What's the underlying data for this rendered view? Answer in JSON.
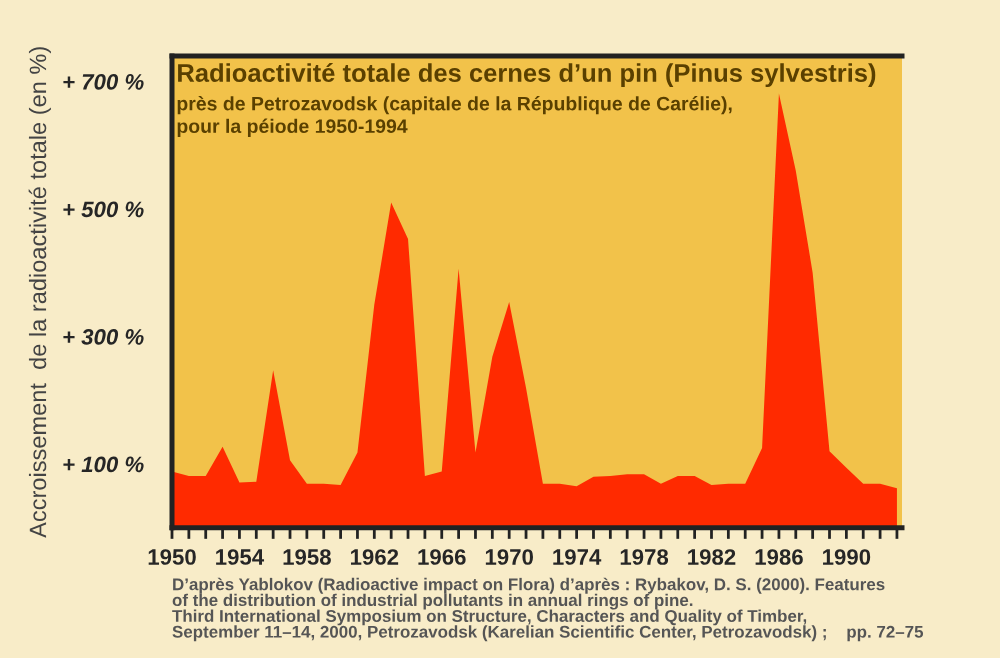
{
  "chart_data": {
    "type": "area",
    "title": "Radioactivité totale des cernes d’un pin (Pinus sylvestris)",
    "subtitle": "près de Petrozavodsk (capitale de la République de Carélie),\npour la péiode 1950-1994",
    "ylabel": "Accroissement  de la radioactivité totale (en %)",
    "annotations": [
      "D’après Yablokov (Radioactive impact on Flora) d’après : Rybakov, D. S. (2000). Features\nof the distribution of industrial pollutants in annual rings of pine.\nThird International Symposium on Structure, Characters and Quality of Timber,\nSeptember 11–14, 2000, Petrozavodsk (Karelian Scientific Center, Petrozavodsk) ;    pp. 72–75"
    ],
    "x": [
      1950,
      1951,
      1952,
      1953,
      1954,
      1955,
      1956,
      1957,
      1958,
      1959,
      1960,
      1961,
      1962,
      1963,
      1964,
      1965,
      1966,
      1967,
      1968,
      1969,
      1970,
      1971,
      1972,
      1973,
      1974,
      1975,
      1976,
      1977,
      1978,
      1979,
      1980,
      1981,
      1982,
      1983,
      1984,
      1985,
      1986,
      1987,
      1988,
      1989,
      1990,
      1991,
      1992,
      1993
    ],
    "series": [
      {
        "color": "#ff2a00",
        "values": [
          88,
          81,
          81,
          127,
          71,
          72,
          247,
          106,
          69,
          69,
          67,
          118,
          350,
          510,
          453,
          81,
          88,
          406,
          118,
          268,
          354,
          219,
          69,
          69,
          65,
          80,
          81,
          84,
          84,
          69,
          81,
          81,
          67,
          69,
          69,
          125,
          681,
          560,
          400,
          120,
          94,
          69,
          69,
          62
        ]
      }
    ],
    "xlim": [
      1950,
      1993.3
    ],
    "xticks": [
      1950,
      {
        "value": 1951,
        "label": null
      },
      {
        "value": 1952,
        "label": null
      },
      {
        "value": 1953,
        "label": null
      },
      1954,
      {
        "value": 1955,
        "label": null
      },
      {
        "value": 1956,
        "label": null
      },
      {
        "value": 1957,
        "label": null
      },
      1958,
      {
        "value": 1959,
        "label": null
      },
      {
        "value": 1960,
        "label": null
      },
      {
        "value": 1961,
        "label": null
      },
      1962,
      {
        "value": 1963,
        "label": null
      },
      {
        "value": 1964,
        "label": null
      },
      {
        "value": 1965,
        "label": null
      },
      1966,
      {
        "value": 1967,
        "label": null
      },
      {
        "value": 1968,
        "label": null
      },
      {
        "value": 1969,
        "label": null
      },
      1970,
      {
        "value": 1971,
        "label": null
      },
      {
        "value": 1972,
        "label": null
      },
      {
        "value": 1973,
        "label": null
      },
      1974,
      {
        "value": 1975,
        "label": null
      },
      {
        "value": 1976,
        "label": null
      },
      {
        "value": 1977,
        "label": null
      },
      1978,
      {
        "value": 1979,
        "label": null
      },
      {
        "value": 1980,
        "label": null
      },
      {
        "value": 1981,
        "label": null
      },
      1982,
      {
        "value": 1983,
        "label": null
      },
      {
        "value": 1984,
        "label": null
      },
      {
        "value": 1985,
        "label": null
      },
      1986,
      {
        "value": 1987,
        "label": null
      },
      {
        "value": 1988,
        "label": null
      },
      {
        "value": 1989,
        "label": null
      },
      1990,
      {
        "value": 1991,
        "label": null
      },
      {
        "value": 1992,
        "label": null
      },
      {
        "value": 1993,
        "label": null
      }
    ],
    "ylim": [
      0,
      740
    ],
    "yticks": [
      {
        "value": 100,
        "label": "+ 100 %"
      },
      {
        "value": 300,
        "label": "+ 300 %"
      },
      {
        "value": 500,
        "label": "+ 500 %"
      },
      {
        "value": 700,
        "label": "+ 700 %"
      }
    ],
    "grid": false,
    "legend": false
  }
}
